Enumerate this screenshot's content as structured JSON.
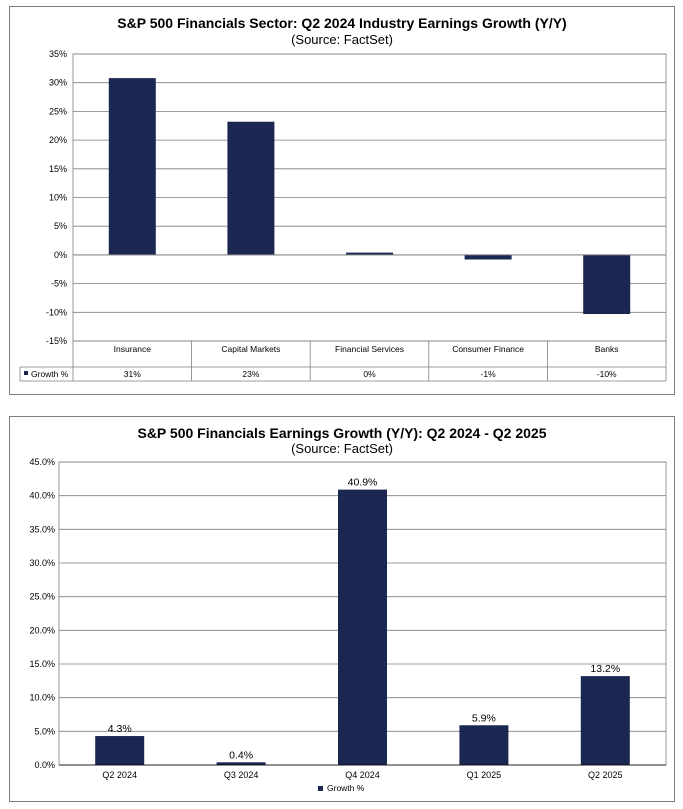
{
  "colors": {
    "bar": "#1a2750",
    "grid": "#7f7f7f",
    "axis": "#000000"
  },
  "chart_data": [
    {
      "type": "bar",
      "title": "S&P 500 Financials Sector: Q2 2024 Industry Earnings Growth (Y/Y)",
      "subtitle": "(Source: FactSet)",
      "categories": [
        "Insurance",
        "Capital Markets",
        "Financial Services",
        "Consumer Finance",
        "Banks"
      ],
      "series": [
        {
          "name": "Growth %",
          "values": [
            30.8,
            23.2,
            0.4,
            -0.8,
            -10.3
          ]
        }
      ],
      "table_labels": [
        "31%",
        "23%",
        "0%",
        "-1%",
        "-10%"
      ],
      "yticks": [
        "35%",
        "30%",
        "25%",
        "20%",
        "15%",
        "10%",
        "5%",
        "0%",
        "-5%",
        "-10%",
        "-15%"
      ],
      "ylim": [
        -15,
        35
      ],
      "grid": true,
      "legend": "data-table"
    },
    {
      "type": "bar",
      "title": "S&P 500 Financials Earnings Growth (Y/Y): Q2 2024 - Q2 2025",
      "subtitle": "(Source: FactSet)",
      "categories": [
        "Q2 2024",
        "Q3 2024",
        "Q4 2024",
        "Q1 2025",
        "Q2 2025"
      ],
      "series": [
        {
          "name": "Growth %",
          "values": [
            4.3,
            0.4,
            40.9,
            5.9,
            13.2
          ]
        }
      ],
      "data_labels": [
        "4.3%",
        "0.4%",
        "40.9%",
        "5.9%",
        "13.2%"
      ],
      "yticks": [
        "45.0%",
        "40.0%",
        "35.0%",
        "30.0%",
        "25.0%",
        "20.0%",
        "15.0%",
        "10.0%",
        "5.0%",
        "0.0%"
      ],
      "ylim": [
        0,
        45
      ],
      "grid": true,
      "legend": "bottom"
    }
  ]
}
